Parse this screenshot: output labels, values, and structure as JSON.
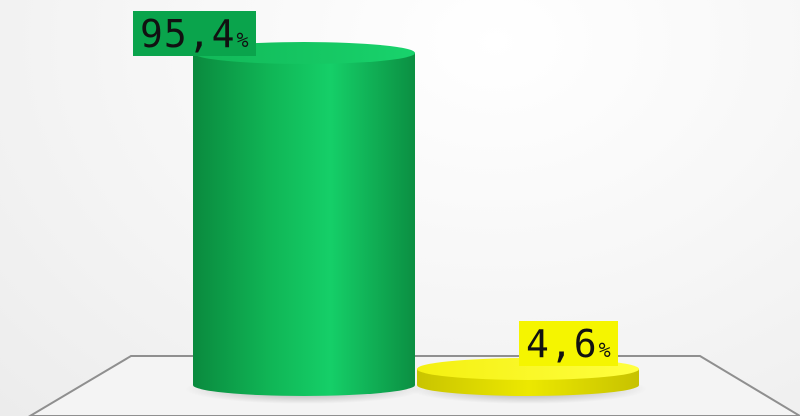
{
  "chart_data": {
    "type": "bar",
    "categories": [
      "",
      ""
    ],
    "values": [
      95.4,
      4.6
    ],
    "value_labels": [
      "95,4",
      "4,6"
    ],
    "unit": "%",
    "ylim": [
      0,
      100
    ],
    "grid": false,
    "legend": "none",
    "colors": [
      "#10b856",
      "#f2ee10"
    ],
    "label_colors": [
      "#0aa44c",
      "#f5f500"
    ]
  }
}
